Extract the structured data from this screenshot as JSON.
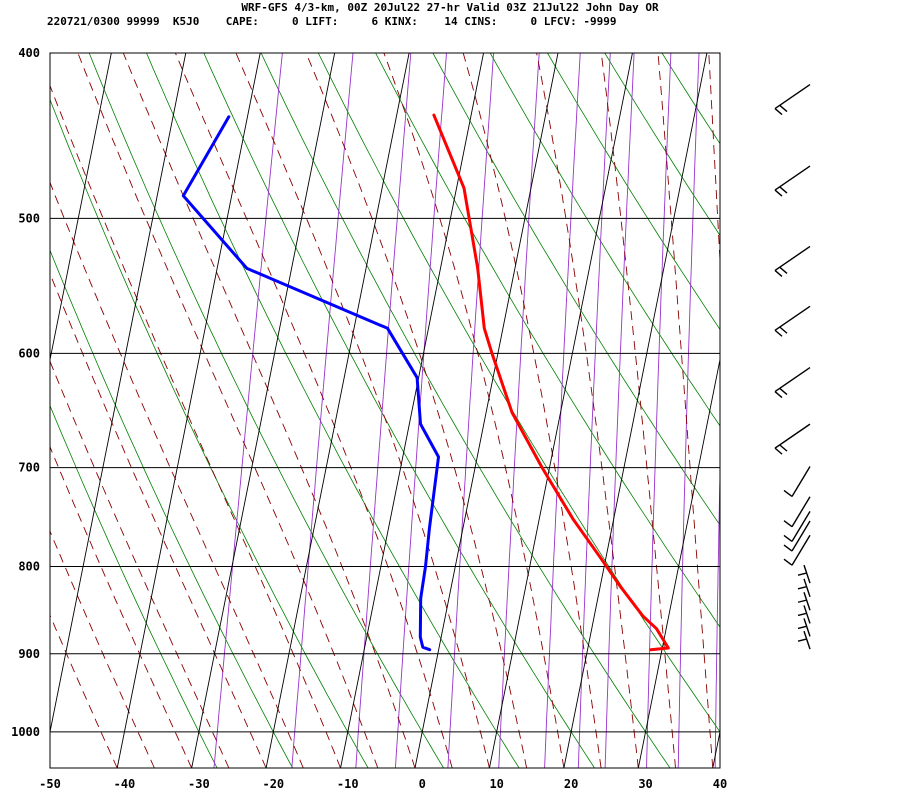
{
  "header": {
    "line1": "WRF-GFS 4/3-km, 00Z 20Jul22 27-hr Valid 03Z 21Jul22 John Day OR",
    "line2": "220721/0300 99999  K5J0    CAPE:     0 LIFT:     6 KINX:    14 CINS:     0 LFCV: -9999"
  },
  "chart_data": {
    "type": "skew-t log-p sounding",
    "x_axis": {
      "ticks": [
        -50,
        -40,
        -30,
        -20,
        -10,
        0,
        10,
        20,
        30,
        40
      ],
      "range": [
        -50,
        40
      ]
    },
    "y_axis": {
      "ticks": [
        400,
        500,
        600,
        700,
        800,
        900,
        1000
      ],
      "scale": "log",
      "range": [
        400,
        1050
      ]
    },
    "grid": true,
    "series": [
      {
        "color": "#ff0000",
        "points": [
          {
            "p": 895,
            "t": 28.5
          },
          {
            "p": 893,
            "t": 30.8
          },
          {
            "p": 870,
            "t": 28.7
          },
          {
            "p": 855,
            "t": 26.5
          },
          {
            "p": 820,
            "t": 22.5
          },
          {
            "p": 790,
            "t": 19.2
          },
          {
            "p": 750,
            "t": 14.5
          },
          {
            "p": 700,
            "t": 9.0
          },
          {
            "p": 650,
            "t": 3.5
          },
          {
            "p": 600,
            "t": -0.8
          },
          {
            "p": 580,
            "t": -2.5
          },
          {
            "p": 535,
            "t": -5.0
          },
          {
            "p": 480,
            "t": -9.0
          },
          {
            "p": 435,
            "t": -15.0
          }
        ]
      },
      {
        "color": "#0000ff",
        "points": [
          {
            "p": 895,
            "t": -1.2
          },
          {
            "p": 892,
            "t": -2.2
          },
          {
            "p": 880,
            "t": -2.8
          },
          {
            "p": 835,
            "t": -3.8
          },
          {
            "p": 800,
            "t": -4.0
          },
          {
            "p": 760,
            "t": -4.5
          },
          {
            "p": 690,
            "t": -5.2
          },
          {
            "p": 660,
            "t": -8.5
          },
          {
            "p": 620,
            "t": -10.2
          },
          {
            "p": 580,
            "t": -15.5
          },
          {
            "p": 535,
            "t": -36.0
          },
          {
            "p": 485,
            "t": -46.5
          },
          {
            "p": 436,
            "t": -42.5
          }
        ]
      }
    ],
    "background_lines": {
      "isotherm_color": "#000000",
      "dry_adiabat_color": "#008000",
      "moist_adiabat_color": "#8b0000",
      "mixing_ratio_color": "#9933cc"
    }
  }
}
